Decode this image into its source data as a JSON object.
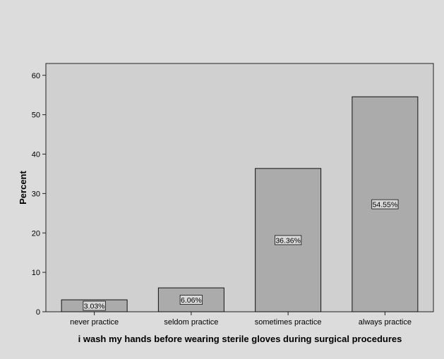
{
  "chart_data": {
    "type": "bar",
    "categories": [
      "never practice",
      "seldom practice",
      "sometimes practice",
      "always practice"
    ],
    "values": [
      3.03,
      6.06,
      36.36,
      54.55
    ],
    "data_labels": [
      "3.03%",
      "6.06%",
      "36.36%",
      "54.55%"
    ],
    "title": "",
    "xlabel": "i wash my hands before wearing sterile gloves during surgical procedures",
    "ylabel": "Percent",
    "ylim": [
      0,
      63
    ],
    "yticks": [
      0,
      10,
      20,
      30,
      40,
      50,
      60
    ],
    "grid": false,
    "legend": "none",
    "colors": {
      "page_background": "#dcdcdc",
      "plot_background": "#d0d0d0",
      "bar_fill": "#ababab",
      "bar_stroke": "#111111",
      "label_box": "#d8d8d8"
    }
  }
}
